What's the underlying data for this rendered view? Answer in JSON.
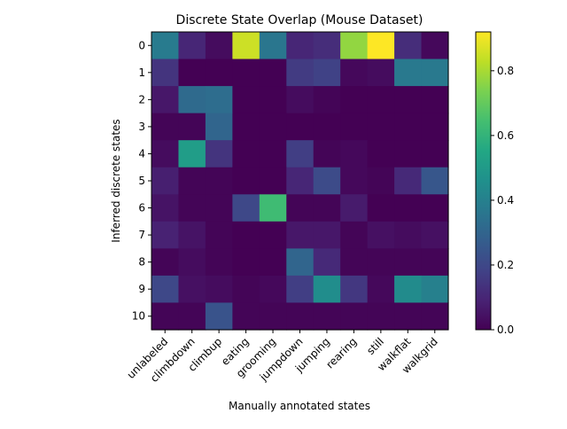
{
  "chart_data": {
    "type": "heatmap",
    "title": "Discrete State Overlap (Mouse Dataset)",
    "xlabel": "Manually annotated states",
    "ylabel": "Inferred discrete states",
    "x_categories": [
      "unlabeled",
      "climbdown",
      "climbup",
      "eating",
      "grooming",
      "jumpdown",
      "jumping",
      "rearing",
      "still",
      "walkflat",
      "walkgrid"
    ],
    "y_categories": [
      "0",
      "1",
      "2",
      "3",
      "4",
      "5",
      "6",
      "7",
      "8",
      "9",
      "10"
    ],
    "values": [
      [
        0.38,
        0.1,
        0.03,
        0.85,
        0.36,
        0.1,
        0.12,
        0.77,
        0.92,
        0.12,
        0.02
      ],
      [
        0.14,
        0.0,
        0.0,
        0.0,
        0.0,
        0.16,
        0.18,
        0.02,
        0.03,
        0.37,
        0.37
      ],
      [
        0.06,
        0.32,
        0.33,
        0.0,
        0.0,
        0.03,
        0.01,
        0.0,
        0.0,
        0.0,
        0.0
      ],
      [
        0.01,
        0.01,
        0.3,
        0.0,
        0.0,
        0.0,
        0.0,
        0.0,
        0.0,
        0.0,
        0.0
      ],
      [
        0.03,
        0.51,
        0.14,
        0.0,
        0.0,
        0.17,
        0.01,
        0.02,
        0.0,
        0.0,
        0.0
      ],
      [
        0.08,
        0.01,
        0.01,
        0.0,
        0.0,
        0.1,
        0.21,
        0.02,
        0.01,
        0.11,
        0.25
      ],
      [
        0.05,
        0.01,
        0.01,
        0.2,
        0.63,
        0.01,
        0.01,
        0.07,
        0.0,
        0.0,
        0.0
      ],
      [
        0.09,
        0.05,
        0.01,
        0.0,
        0.0,
        0.06,
        0.06,
        0.01,
        0.04,
        0.03,
        0.04
      ],
      [
        0.01,
        0.03,
        0.01,
        0.0,
        0.0,
        0.3,
        0.11,
        0.01,
        0.01,
        0.01,
        0.01
      ],
      [
        0.2,
        0.04,
        0.03,
        0.01,
        0.02,
        0.17,
        0.45,
        0.15,
        0.02,
        0.44,
        0.4
      ],
      [
        0.01,
        0.01,
        0.24,
        0.01,
        0.01,
        0.01,
        0.01,
        0.01,
        0.01,
        0.01,
        0.01
      ]
    ],
    "vmin": 0.0,
    "vmax": 0.92,
    "colormap": "viridis",
    "colorbar": {
      "ticks": [
        0.0,
        0.2,
        0.4,
        0.6,
        0.8
      ],
      "tick_labels": [
        "0.0",
        "0.2",
        "0.4",
        "0.6",
        "0.8"
      ]
    },
    "grid": false
  }
}
